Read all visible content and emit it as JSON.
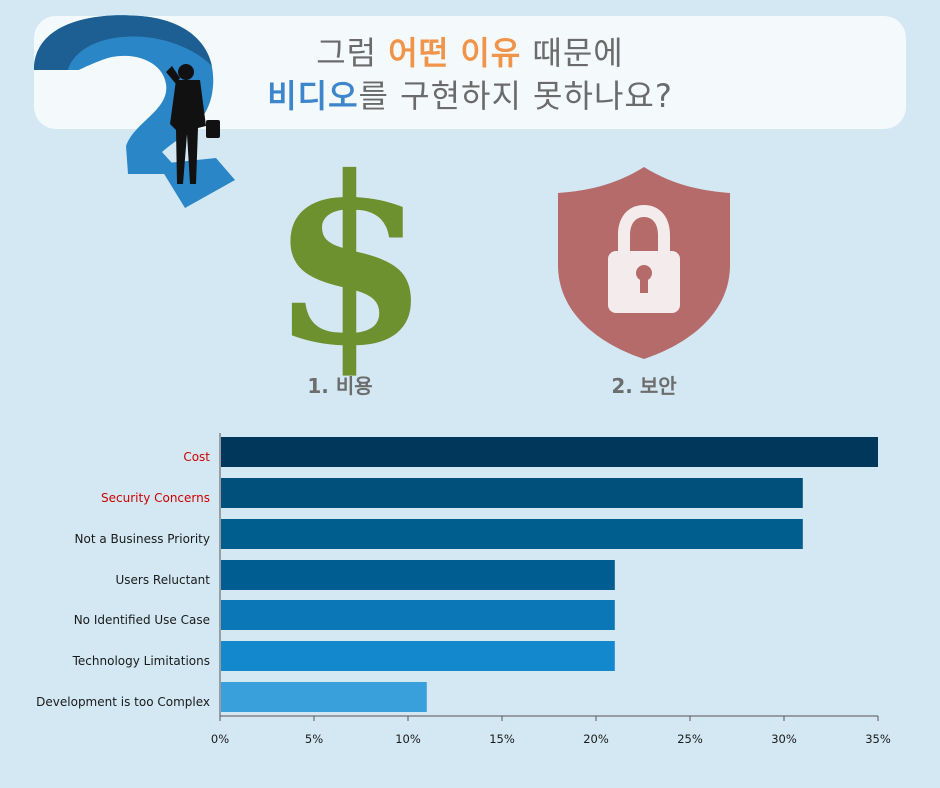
{
  "title": {
    "line1": {
      "pre": "그럼 ",
      "hl1": "어떤",
      "mid": " ",
      "hl2": "이유",
      "post": " 때문에"
    },
    "line2": {
      "hl": "비디오",
      "post": "를 구현하지 못하나요?"
    }
  },
  "icons": {
    "cost": {
      "name": "dollar-icon",
      "glyph": "$",
      "color": "#6e9130",
      "label": "1. 비용"
    },
    "security": {
      "name": "lock-shield-icon",
      "color": "#b56b69",
      "label": "2. 보안"
    }
  },
  "chart_data": {
    "type": "bar",
    "orientation": "horizontal",
    "categories": [
      "Cost",
      "Security Concerns",
      "Not a Business Priority",
      "Users Reluctant",
      "No Identified Use Case",
      "Technology Limitations",
      "Development is too Complex"
    ],
    "values": [
      35,
      31,
      31,
      21,
      21,
      21,
      11
    ],
    "highlighted": [
      "Cost",
      "Security Concerns"
    ],
    "colors": [
      "#00375a",
      "#00507c",
      "#005e8e",
      "#005d91",
      "#0c77b6",
      "#1388cc",
      "#3aa0dc"
    ],
    "xlim": [
      0,
      35
    ],
    "xticks": [
      "0%",
      "5%",
      "10%",
      "15%",
      "20%",
      "25%",
      "30%",
      "35%"
    ],
    "grid": false
  }
}
